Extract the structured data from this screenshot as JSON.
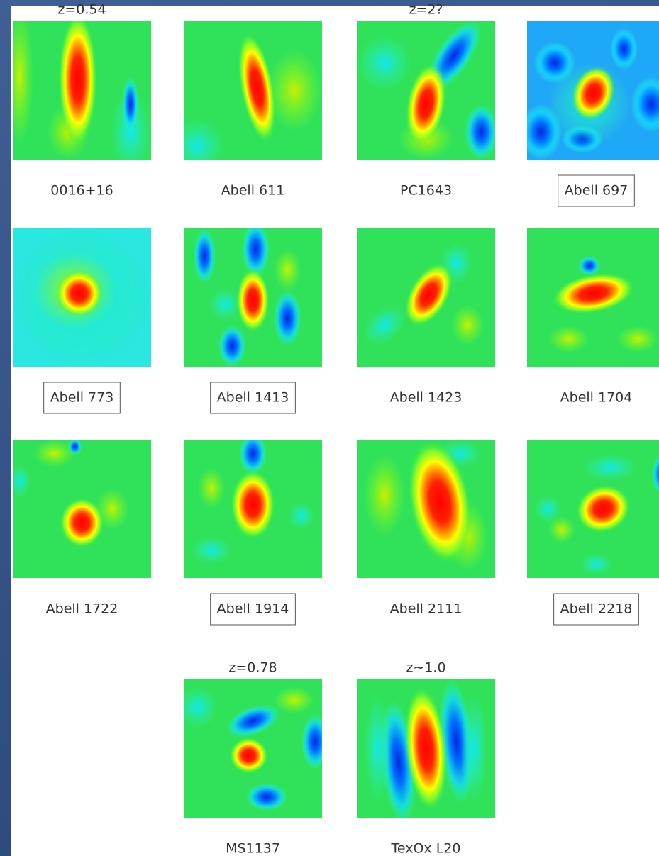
{
  "panels": [
    {
      "label": "0016+16",
      "redshift": "z=0.54"
    },
    {
      "label": "Abell 611"
    },
    {
      "label": "PC1643",
      "redshift": "z=2?"
    },
    {
      "label": "Abell 697",
      "boxed": true
    },
    {
      "label": "Abell 773",
      "boxed": true
    },
    {
      "label": "Abell 1413",
      "boxed": true
    },
    {
      "label": "Abell 1423"
    },
    {
      "label": "Abell 1704"
    },
    {
      "label": "Abell 1722"
    },
    {
      "label": "Abell 1914",
      "boxed": true
    },
    {
      "label": "Abell 2111"
    },
    {
      "label": "Abell 2218",
      "boxed": true
    },
    {
      "label": "MS1137",
      "redshift": "z=0.78"
    },
    {
      "label": "TexOx L20",
      "redshift": "z∼1.0"
    }
  ]
}
